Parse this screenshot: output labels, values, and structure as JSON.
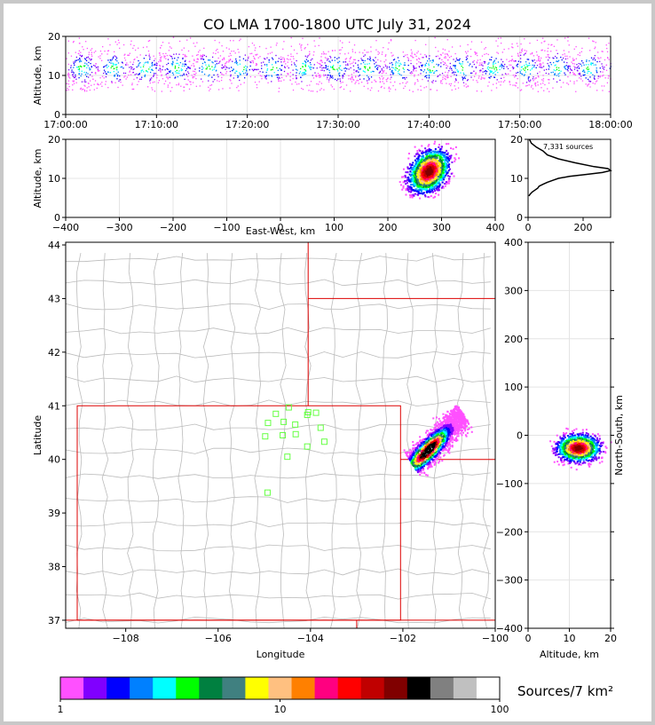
{
  "title": "CO LMA 1700-1800 UTC July 31, 2024",
  "colors": {
    "colorbar": [
      "#ff50ff",
      "#8000ff",
      "#0000ff",
      "#0080ff",
      "#00ffff",
      "#00ff00",
      "#008040",
      "#408080",
      "#ffff00",
      "#ffc080",
      "#ff8000",
      "#ff0080",
      "#ff0000",
      "#c00000",
      "#800000",
      "#000000",
      "#808080",
      "#c0c0c0",
      "#ffffff"
    ],
    "state_border": "#dd0000",
    "county_border": "#bbbbbb",
    "station": "#66ff44"
  },
  "chart_data": [
    {
      "name": "time-height",
      "type": "scatter",
      "xlabel": "",
      "ylabel": "Altitude, km",
      "xticks": [
        "17:00:00",
        "17:10:00",
        "17:20:00",
        "17:30:00",
        "17:40:00",
        "17:50:00",
        "18:00:00"
      ],
      "xlim_minutes": [
        0,
        60
      ],
      "yticks": [
        0,
        10,
        20
      ],
      "ylim": [
        0,
        20
      ],
      "source_altitude_band_km": [
        6,
        20
      ],
      "grid": true
    },
    {
      "name": "east-west-altitude",
      "type": "scatter",
      "xlabel": "East-West, km",
      "ylabel": "Altitude, km",
      "xticks": [
        -400,
        -300,
        -200,
        -100,
        0,
        100,
        200,
        300,
        400
      ],
      "xlim": [
        -400,
        400
      ],
      "yticks": [
        0,
        10,
        20
      ],
      "ylim": [
        0,
        20
      ],
      "cluster_center": [
        275,
        12
      ],
      "grid": true
    },
    {
      "name": "altitude-histogram",
      "type": "line",
      "xticks": [
        0,
        200
      ],
      "xlim": [
        0,
        300
      ],
      "yticks": [
        0,
        10,
        20
      ],
      "ylim": [
        0,
        20
      ],
      "annotation": "7,331 sources",
      "profile_altitude_km": [
        20,
        19,
        18,
        17,
        16,
        15,
        14,
        13,
        12.5,
        12,
        11.5,
        11,
        10.5,
        10,
        9.5,
        9,
        8.5,
        8,
        7.5,
        7,
        6.5,
        6,
        5.5
      ],
      "profile_counts": [
        5,
        12,
        30,
        55,
        70,
        110,
        170,
        240,
        290,
        300,
        270,
        210,
        150,
        110,
        90,
        70,
        55,
        40,
        35,
        25,
        15,
        8,
        3
      ]
    },
    {
      "name": "plan-view",
      "type": "scatter",
      "xlabel": "Longitude",
      "ylabel": "Latitude",
      "xticks": [
        -108,
        -106,
        -104,
        -102,
        -100
      ],
      "xlim": [
        -109.3,
        -100
      ],
      "yticks": [
        37,
        38,
        39,
        40,
        41,
        42,
        43,
        44
      ],
      "ylim": [
        36.85,
        44.05
      ],
      "cluster_axis_start": [
        -101.8,
        39.9
      ],
      "cluster_axis_end": [
        -100.7,
        40.85
      ],
      "stations": [
        [
          -104.47,
          40.97
        ],
        [
          -104.05,
          40.88
        ],
        [
          -103.88,
          40.87
        ],
        [
          -104.07,
          40.83
        ],
        [
          -104.75,
          40.85
        ],
        [
          -104.58,
          40.7
        ],
        [
          -104.33,
          40.65
        ],
        [
          -103.78,
          40.59
        ],
        [
          -104.32,
          40.47
        ],
        [
          -104.6,
          40.45
        ],
        [
          -104.98,
          40.43
        ],
        [
          -104.92,
          40.68
        ],
        [
          -103.7,
          40.33
        ],
        [
          -104.07,
          40.24
        ],
        [
          -104.5,
          40.05
        ],
        [
          -104.93,
          39.38
        ]
      ]
    },
    {
      "name": "north-south-altitude",
      "type": "scatter",
      "xlabel": "Altitude, km",
      "ylabel": "North-South, km",
      "xticks": [
        0,
        10,
        20
      ],
      "xlim": [
        0,
        20
      ],
      "yticks": [
        -400,
        -300,
        -200,
        -100,
        0,
        100,
        200,
        300,
        400
      ],
      "ylim": [
        -400,
        400
      ],
      "cluster_center": [
        12,
        -25
      ],
      "grid": true
    },
    {
      "name": "colorbar",
      "type": "heatmap",
      "label": "Sources/7 km²",
      "ticks": [
        1,
        10,
        100
      ],
      "scale": "log",
      "range": [
        1,
        100
      ]
    }
  ]
}
